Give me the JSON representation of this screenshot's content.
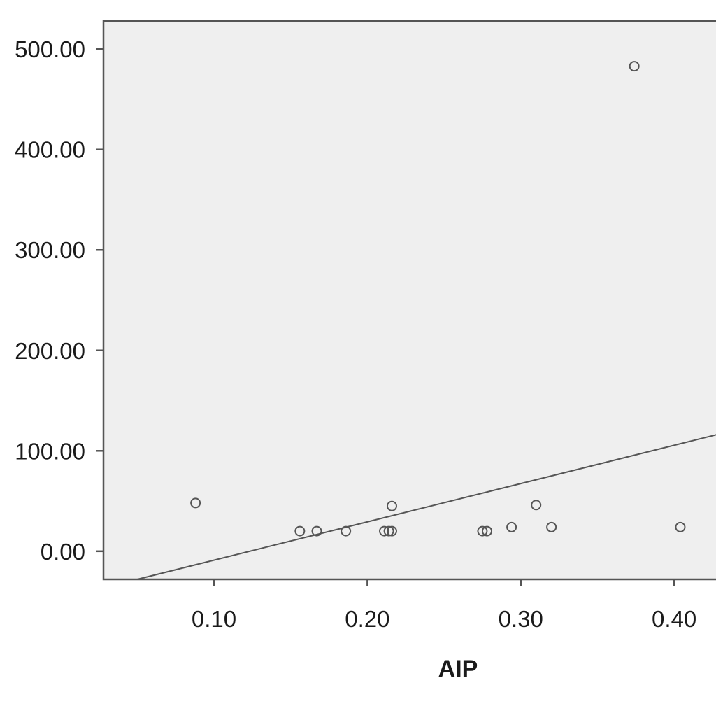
{
  "chart_data": {
    "type": "scatter",
    "title": "",
    "xlabel": "AIP",
    "ylabel": "",
    "x_ticks": [
      {
        "value": 0.1,
        "label": "0.10"
      },
      {
        "value": 0.2,
        "label": "0.20"
      },
      {
        "value": 0.3,
        "label": "0.30"
      },
      {
        "value": 0.4,
        "label": "0.40"
      }
    ],
    "y_ticks": [
      {
        "value": 0,
        "label": "0.00"
      },
      {
        "value": 1,
        "label": "100.00"
      },
      {
        "value": 2,
        "label": "200.00"
      },
      {
        "value": 3,
        "label": "300.00"
      },
      {
        "value": 4,
        "label": "400.00"
      },
      {
        "value": 5,
        "label": "500.00"
      }
    ],
    "xlim": [
      0.028,
      0.43
    ],
    "ylim": [
      -0.28,
      5.28
    ],
    "grid": false,
    "colors": {
      "plot_background": "#efefef",
      "frame": "#555555",
      "point_stroke": "#555555",
      "fit_line": "#555555"
    },
    "points": [
      {
        "x": 0.088,
        "y": 0.48
      },
      {
        "x": 0.156,
        "y": 0.2
      },
      {
        "x": 0.167,
        "y": 0.2
      },
      {
        "x": 0.186,
        "y": 0.2
      },
      {
        "x": 0.211,
        "y": 0.2
      },
      {
        "x": 0.214,
        "y": 0.2
      },
      {
        "x": 0.216,
        "y": 0.2
      },
      {
        "x": 0.216,
        "y": 0.45
      },
      {
        "x": 0.275,
        "y": 0.2
      },
      {
        "x": 0.278,
        "y": 0.2
      },
      {
        "x": 0.294,
        "y": 0.24
      },
      {
        "x": 0.31,
        "y": 0.46
      },
      {
        "x": 0.32,
        "y": 0.24
      },
      {
        "x": 0.374,
        "y": 4.83
      },
      {
        "x": 0.404,
        "y": 0.24
      }
    ],
    "fit_line": [
      {
        "x": 0.05,
        "y": -0.28
      },
      {
        "x": 0.43,
        "y": 1.17
      }
    ]
  }
}
